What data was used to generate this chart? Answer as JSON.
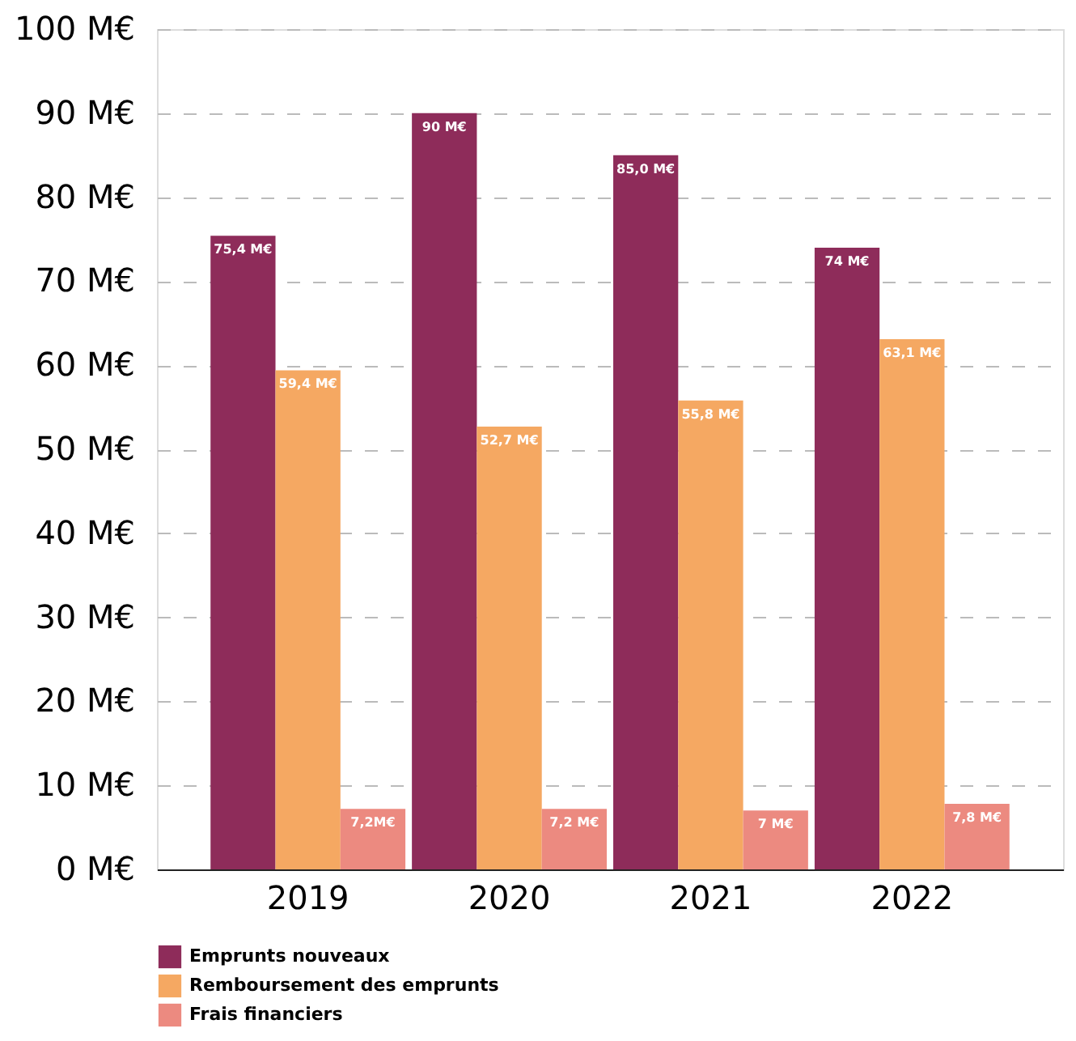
{
  "chart_data": {
    "type": "bar",
    "categories": [
      "2019",
      "2020",
      "2021",
      "2022"
    ],
    "series": [
      {
        "name": "Emprunts nouveaux",
        "color": "#8e2c5a",
        "values": [
          75.4,
          90,
          85.0,
          74
        ],
        "value_labels": [
          "75,4 M€",
          "90 M€",
          "85,0 M€",
          "74 M€"
        ]
      },
      {
        "name": "Remboursement des emprunts",
        "color": "#f5a862",
        "values": [
          59.4,
          52.7,
          55.8,
          63.1
        ],
        "value_labels": [
          "59,4 M€",
          "52,7 M€",
          "55,8 M€",
          "63,1 M€"
        ]
      },
      {
        "name": "Frais financiers",
        "color": "#ec8a80",
        "values": [
          7.2,
          7.2,
          7,
          7.8
        ],
        "value_labels": [
          "7,2M€",
          "7,2 M€",
          "7 M€",
          "7,8 M€"
        ]
      }
    ],
    "ylim": [
      0,
      100
    ],
    "yticks": [
      {
        "value": 0,
        "label": "0 M€"
      },
      {
        "value": 10,
        "label": "10 M€"
      },
      {
        "value": 20,
        "label": "20 M€"
      },
      {
        "value": 30,
        "label": "30 M€"
      },
      {
        "value": 40,
        "label": "40 M€"
      },
      {
        "value": 50,
        "label": "50 M€"
      },
      {
        "value": 60,
        "label": "60 M€"
      },
      {
        "value": 70,
        "label": "70 M€"
      },
      {
        "value": 80,
        "label": "80 M€"
      },
      {
        "value": 90,
        "label": "90 M€"
      },
      {
        "value": 100,
        "label": "100 M€"
      }
    ],
    "grid": "y",
    "legend": "bottom"
  }
}
